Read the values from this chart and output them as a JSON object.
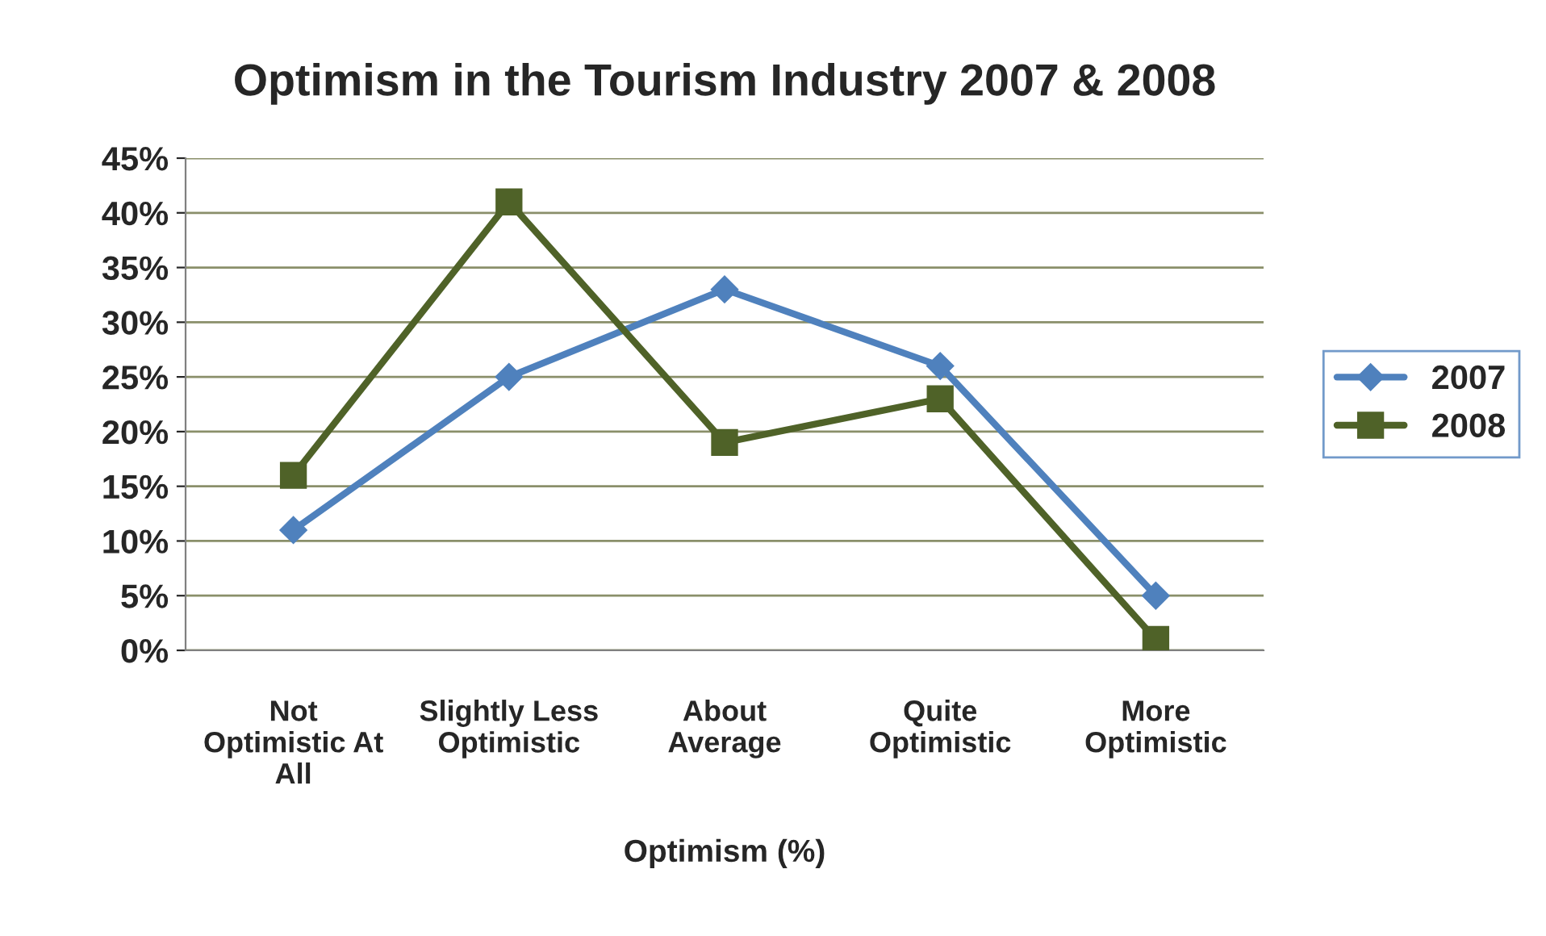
{
  "chart_data": {
    "type": "line",
    "title": "Optimism in the Tourism Industry 2007 & 2008",
    "xlabel": "Optimism (%)",
    "categories": [
      "Not\nOptimistic At\nAll",
      "Slightly Less\nOptimistic",
      "About\nAverage",
      "Quite\nOptimistic",
      "More\nOptimistic"
    ],
    "series": [
      {
        "name": "2007",
        "color": "#4f81bd",
        "marker": "diamond",
        "values": [
          11,
          25,
          33,
          26,
          5
        ]
      },
      {
        "name": "2008",
        "color": "#4f6228",
        "marker": "square",
        "values": [
          16,
          41,
          19,
          23,
          1
        ]
      }
    ],
    "ylim": [
      0,
      45
    ],
    "yticks": [
      {
        "value": 0,
        "label": "0%"
      },
      {
        "value": 5,
        "label": "5%"
      },
      {
        "value": 10,
        "label": "10%"
      },
      {
        "value": 15,
        "label": "15%"
      },
      {
        "value": 20,
        "label": "20%"
      },
      {
        "value": 25,
        "label": "25%"
      },
      {
        "value": 30,
        "label": "30%"
      },
      {
        "value": 35,
        "label": "35%"
      },
      {
        "value": 40,
        "label": "40%"
      },
      {
        "value": 45,
        "label": "45%"
      }
    ],
    "grid": "y",
    "legend": "right",
    "line_style": "solid"
  }
}
